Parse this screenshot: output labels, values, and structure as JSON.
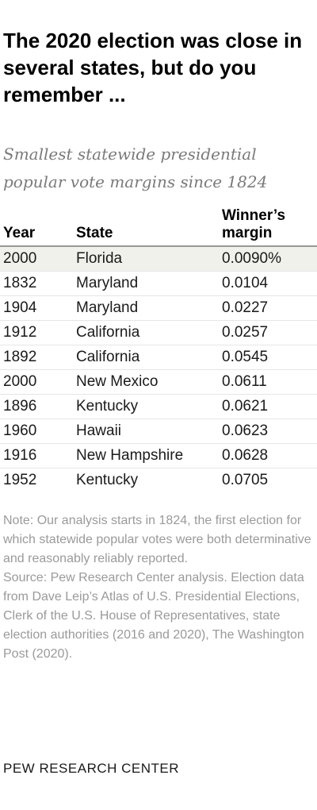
{
  "title": "The 2020 election was close in several states, but do you remember ...",
  "subtitle": "Smallest statewide presidential popular vote margins since 1824",
  "table": {
    "headers": {
      "year": "Year",
      "state": "State",
      "margin_line1": "Winner’s",
      "margin_line2": "margin"
    },
    "rows": [
      {
        "year": "2000",
        "state": "Florida",
        "margin": "0.0090%"
      },
      {
        "year": "1832",
        "state": "Maryland",
        "margin": "0.0104"
      },
      {
        "year": "1904",
        "state": "Maryland",
        "margin": "0.0227"
      },
      {
        "year": "1912",
        "state": "California",
        "margin": "0.0257"
      },
      {
        "year": "1892",
        "state": "California",
        "margin": "0.0545"
      },
      {
        "year": "2000",
        "state": "New Mexico",
        "margin": "0.0611"
      },
      {
        "year": "1896",
        "state": "Kentucky",
        "margin": "0.0621"
      },
      {
        "year": "1960",
        "state": "Hawaii",
        "margin": "0.0623"
      },
      {
        "year": "1916",
        "state": "New Hampshire",
        "margin": "0.0628"
      },
      {
        "year": "1952",
        "state": "Kentucky",
        "margin": "0.0705"
      }
    ]
  },
  "note": "Note: Our analysis starts in 1824, the first election for which statewide popular votes were both determinative and reasonably reliably reported.",
  "source": "Source: Pew Research Center analysis. Election data from Dave Leip’s Atlas of U.S. Presidential Elections, Clerk of the U.S. House of Representatives, state election authorities (2016 and 2020), The Washington Post (2020).",
  "footer": "PEW RESEARCH CENTER",
  "colors": {
    "highlight_row": "#f1f1ec",
    "note_text": "#9a9a9a",
    "subtitle_text": "#7a7a7a"
  }
}
